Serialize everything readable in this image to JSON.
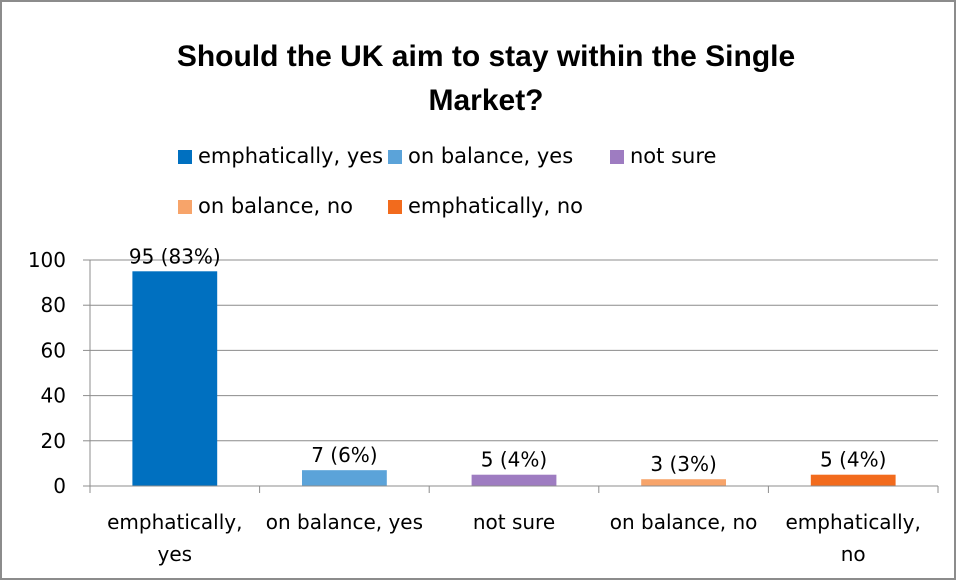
{
  "chart_data": {
    "type": "bar",
    "title_lines": [
      "Should the UK aim to stay within the Single",
      "Market?"
    ],
    "categories": [
      "emphatically, yes",
      "on balance, yes",
      "not sure",
      "on balance, no",
      "emphatically, no"
    ],
    "category_label_lines": [
      [
        "emphatically,",
        "yes"
      ],
      [
        "on balance, yes"
      ],
      [
        "not sure"
      ],
      [
        "on balance, no"
      ],
      [
        "emphatically,",
        "no"
      ]
    ],
    "values": [
      95,
      7,
      5,
      3,
      5
    ],
    "data_labels": [
      "95 (83%)",
      "7 (6%)",
      "5 (4%)",
      "3 (3%)",
      "5 (4%)"
    ],
    "colors": [
      "#0070c0",
      "#5ba3d9",
      "#9e7cc1",
      "#f7a46a",
      "#f26b1d"
    ],
    "legend": [
      "emphatically, yes",
      "on balance, yes",
      "not sure",
      "on balance, no",
      "emphatically, no"
    ],
    "legend_position": "top",
    "ylim": [
      0,
      100
    ],
    "yticks": [
      "0",
      "20",
      "40",
      "60",
      "80",
      "100"
    ],
    "xlabel": "",
    "ylabel": "",
    "grid": true,
    "gridline_color": "#8c8c8c",
    "axis_color": "#8c8c8c"
  }
}
